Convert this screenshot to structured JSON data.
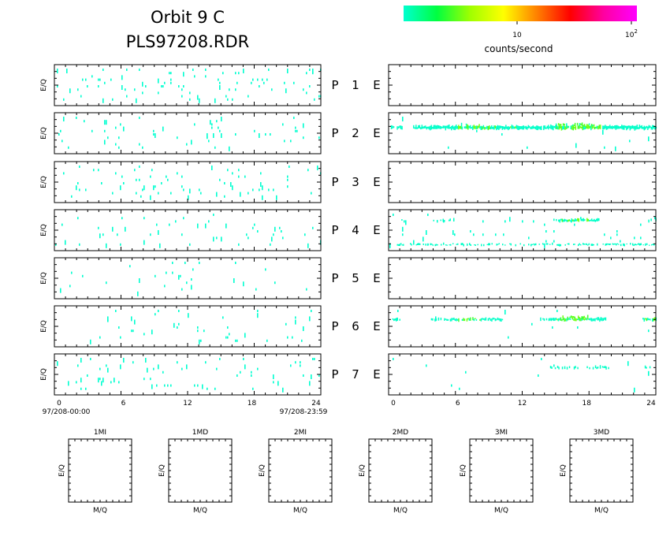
{
  "header": {
    "title_line1": "Orbit  9  C",
    "title_line2": "PLS97208.RDR"
  },
  "colorbar": {
    "tick_10": "10",
    "tick_100_base": "10",
    "tick_100_exp": "2",
    "label": "counts/second",
    "stops": [
      "#00ffd0",
      "#00ff40",
      "#a0ff00",
      "#ffff00",
      "#ff8000",
      "#ff0000",
      "#ff00a0",
      "#ff00ff"
    ]
  },
  "chart_data": {
    "type": "heatmap",
    "x_range": [
      0,
      24
    ],
    "x_ticks": [
      "0",
      "6",
      "12",
      "18",
      "24"
    ],
    "y_label": "E/Q",
    "start_label": "97/208-00:00",
    "end_label": "97/208-23:59",
    "rows": [
      {
        "row_label": "P  1  E",
        "p_label": "P",
        "p_num": "1",
        "e_label": "E",
        "left_density": 0.09,
        "right_pattern": "empty"
      },
      {
        "row_label": "P  2  E",
        "p_label": "P",
        "p_num": "2",
        "e_label": "E",
        "left_density": 0.06,
        "right_pattern": "band-strong"
      },
      {
        "row_label": "P  3  E",
        "p_label": "P",
        "p_num": "3",
        "e_label": "E",
        "left_density": 0.08,
        "right_pattern": "empty"
      },
      {
        "row_label": "P  4  E",
        "p_label": "P",
        "p_num": "4",
        "e_label": "E",
        "left_density": 0.05,
        "right_pattern": "double-band"
      },
      {
        "row_label": "P  5  E",
        "p_label": "P",
        "p_num": "5",
        "e_label": "E",
        "left_density": 0.035,
        "right_pattern": "empty"
      },
      {
        "row_label": "P  6  E",
        "p_label": "P",
        "p_num": "6",
        "e_label": "E",
        "left_density": 0.06,
        "right_pattern": "band-medium"
      },
      {
        "row_label": "P  7  E",
        "p_label": "P",
        "p_num": "7",
        "e_label": "E",
        "left_density": 0.08,
        "right_pattern": "sparse"
      }
    ],
    "mq_panels": [
      {
        "title": "1MI",
        "x_label": "M/Q",
        "y_label": "E/Q"
      },
      {
        "title": "1MD",
        "x_label": "M/Q",
        "y_label": "E/Q"
      },
      {
        "title": "2MI",
        "x_label": "M/Q",
        "y_label": "E/Q"
      },
      {
        "title": "2MD",
        "x_label": "M/Q",
        "y_label": "E/Q"
      },
      {
        "title": "3MI",
        "x_label": "M/Q",
        "y_label": "E/Q"
      },
      {
        "title": "3MD",
        "x_label": "M/Q",
        "y_label": "E/Q"
      }
    ]
  }
}
